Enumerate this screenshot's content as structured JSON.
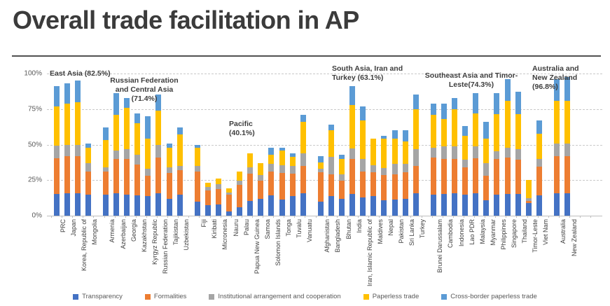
{
  "title": "Overall trade facilitation in AP",
  "colors": {
    "transparency": "#4472C4",
    "formalities": "#ED7D31",
    "institutional": "#A5A5A5",
    "paperless": "#FFC000",
    "cross_border": "#5B9BD5",
    "title_text": "#3B3B3B",
    "axis_text": "#595959",
    "gridline": "#C9C9C9"
  },
  "chart_data": {
    "type": "bar",
    "stacked": true,
    "title": "Overall trade facilitation in AP",
    "xlabel": "",
    "ylabel": "",
    "ylim": [
      0,
      100
    ],
    "y_tick_labels": [
      "0%",
      "25%",
      "50%",
      "75%",
      "100%"
    ],
    "grid": "horizontal dashed",
    "legend_position": "bottom",
    "series": [
      {
        "name": "Transparency",
        "color": "#4472C4"
      },
      {
        "name": "Formalities",
        "color": "#ED7D31"
      },
      {
        "name": "Institutional arrangement and cooperation",
        "color": "#A5A5A5"
      },
      {
        "name": "Paperless trade",
        "color": "#FFC000"
      },
      {
        "name": "Cross-border paperless trade",
        "color": "#5B9BD5"
      }
    ],
    "values_order": [
      "Transparency",
      "Formalities",
      "Institutional arrangement and cooperation",
      "Paperless trade",
      "Cross-border paperless trade"
    ],
    "groups": [
      {
        "name": "East Asia",
        "average_percent": 82.5,
        "annotation_lines": [
          "East Asia (82.5%)"
        ],
        "countries": [
          {
            "name": "PRC",
            "values": [
              15.5,
              25,
              9,
              27.5,
              14
            ],
            "total": 91
          },
          {
            "name": "Japan",
            "values": [
              16,
              26,
              8,
              29,
              14
            ],
            "total": 93
          },
          {
            "name": "Korea, Republic of",
            "values": [
              16,
              26,
              8,
              30,
              15
            ],
            "total": 95
          },
          {
            "name": "Mongolia",
            "values": [
              15,
              16,
              6,
              11,
              3
            ],
            "total": 51
          }
        ]
      },
      {
        "name": "Russian Federation and Central Asia",
        "average_percent": 71.4,
        "annotation_lines": [
          "Russian Federation",
          "and Central Asia",
          "(71.4%)"
        ],
        "countries": [
          {
            "name": "Armenia",
            "values": [
              15,
              16,
              3,
              19,
              9
            ],
            "total": 62
          },
          {
            "name": "Azerbaijan",
            "values": [
              16,
              24,
              6,
              25,
              15
            ],
            "total": 86
          },
          {
            "name": "Georgia",
            "values": [
              15,
              25,
              7,
              29,
              7
            ],
            "total": 83
          },
          {
            "name": "Kazakhstan",
            "values": [
              14.5,
              21.5,
              7,
              22,
              7
            ],
            "total": 72
          },
          {
            "name": "Kyrgyz Republic",
            "values": [
              14,
              14,
              5,
              21,
              16
            ],
            "total": 70
          },
          {
            "name": "Russian Federation",
            "values": [
              16,
              25,
              9,
              24,
              11
            ],
            "total": 85
          },
          {
            "name": "Tajikistan",
            "values": [
              12,
              18,
              4,
              14,
              3
            ],
            "total": 51
          },
          {
            "name": "Uzbekistan",
            "values": [
              15,
              17,
              3,
              22,
              5
            ],
            "total": 62
          }
        ]
      },
      {
        "name": "Pacific",
        "average_percent": 40.1,
        "annotation_lines": [
          "Pacific",
          "(40.1%)"
        ],
        "countries": [
          {
            "name": "Fiji",
            "values": [
              10,
              21,
              4,
              13,
              2
            ],
            "total": 50
          },
          {
            "name": "Kiribati",
            "values": [
              7.5,
              10,
              2.5,
              3,
              0
            ],
            "total": 23
          },
          {
            "name": "Micronesia",
            "values": [
              8,
              10.5,
              3.5,
              4,
              0
            ],
            "total": 26
          },
          {
            "name": "Nauru",
            "values": [
              3,
              12,
              1.5,
              2.5,
              0
            ],
            "total": 19
          },
          {
            "name": "Palau",
            "values": [
              6,
              15.5,
              3,
              6.5,
              0
            ],
            "total": 31
          },
          {
            "name": "Papua New Guinea",
            "values": [
              10.5,
              19,
              4.5,
              10,
              0
            ],
            "total": 44
          },
          {
            "name": "Samoa",
            "values": [
              12,
              12.5,
              4,
              8.5,
              0
            ],
            "total": 37
          },
          {
            "name": "Solomon Islands",
            "values": [
              14.5,
              16.5,
              5.5,
              6.5,
              5
            ],
            "total": 48
          },
          {
            "name": "Tonga",
            "values": [
              11.5,
              18.5,
              5.5,
              10.5,
              2
            ],
            "total": 48
          },
          {
            "name": "Tuvalu",
            "values": [
              14,
              15.5,
              5.5,
              6.5,
              2.5
            ],
            "total": 44
          },
          {
            "name": "Vanuatu",
            "values": [
              16,
              19,
              9,
              22,
              5
            ],
            "total": 71
          }
        ]
      },
      {
        "name": "South Asia, Iran and Turkey",
        "average_percent": 63.1,
        "annotation_lines": [
          "South Asia, Iran and",
          "Turkey (63.1%)"
        ],
        "countries": [
          {
            "name": "Afghanistan",
            "values": [
              10,
              20.5,
              2.5,
              4.5,
              4.5
            ],
            "total": 42
          },
          {
            "name": "Bangladesh",
            "values": [
              14,
              15,
              12.5,
              18.5,
              4
            ],
            "total": 64
          },
          {
            "name": "Bhutan",
            "values": [
              12,
              12.5,
              4.5,
              11,
              3
            ],
            "total": 43
          },
          {
            "name": "India",
            "values": [
              15.5,
              24.5,
              7.5,
              30.5,
              13
            ],
            "total": 91
          },
          {
            "name": "Iran, Islamic Republic of",
            "values": [
              13,
              18,
              9,
              27,
              10
            ],
            "total": 77
          },
          {
            "name": "Maldives",
            "values": [
              14,
              16.5,
              5,
              18.5,
              0
            ],
            "total": 54
          },
          {
            "name": "Nepal",
            "values": [
              11,
              17.5,
              5,
              20.5,
              2
            ],
            "total": 56
          },
          {
            "name": "Pakistan",
            "values": [
              11.5,
              17.5,
              7.5,
              17.5,
              6
            ],
            "total": 60
          },
          {
            "name": "Sri Lanka",
            "values": [
              12,
              18.5,
              6,
              15.5,
              8
            ],
            "total": 60
          },
          {
            "name": "Turkey",
            "values": [
              16,
              19,
              12,
              28,
              10
            ],
            "total": 85
          }
        ]
      },
      {
        "name": "Southeast Asia and Timor-Leste",
        "average_percent": 74.3,
        "annotation_lines": [
          "Southeast Asia and Timor-",
          "Leste(74.3%)"
        ],
        "countries": [
          {
            "name": "Brunei Darussalam",
            "values": [
              15,
              26,
              7,
              23,
              8
            ],
            "total": 79
          },
          {
            "name": "Cambodia",
            "values": [
              15.5,
              24.5,
              9,
              19,
              11
            ],
            "total": 79
          },
          {
            "name": "Indonesia",
            "values": [
              16,
              24,
              9,
              26,
              8
            ],
            "total": 83
          },
          {
            "name": "Lao PDR",
            "values": [
              15,
              19,
              5.5,
              16.5,
              7
            ],
            "total": 63
          },
          {
            "name": "Malaysia",
            "values": [
              16,
              24.5,
              8.5,
              23,
              14
            ],
            "total": 86
          },
          {
            "name": "Myanmar",
            "values": [
              11,
              17,
              9,
              17,
              12
            ],
            "total": 66
          },
          {
            "name": "Philippines",
            "values": [
              15,
              25,
              5.5,
              26,
              14.5
            ],
            "total": 86
          },
          {
            "name": "Singapore",
            "values": [
              15.5,
              25.5,
              7,
              33,
              15
            ],
            "total": 96
          },
          {
            "name": "Thailand",
            "values": [
              15.5,
              24,
              7.5,
              24.5,
              15.5
            ],
            "total": 87
          },
          {
            "name": "Timor-Leste",
            "values": [
              9,
              1.5,
              2,
              12.5,
              0
            ],
            "total": 25
          },
          {
            "name": "Viet Nam",
            "values": [
              14.5,
              20,
              5.5,
              17.5,
              9.5
            ],
            "total": 67
          }
        ]
      },
      {
        "name": "Australia and New Zealand",
        "average_percent": 96.8,
        "annotation_lines": [
          "Australia and",
          "New Zealand",
          "(96.8%)"
        ],
        "countries": [
          {
            "name": "Australia",
            "values": [
              16,
              26,
              9,
              30,
              15
            ],
            "total": 96
          },
          {
            "name": "New Zealand",
            "values": [
              16,
              26,
              9,
              30,
              16.5
            ],
            "total": 97.5
          }
        ]
      }
    ]
  }
}
